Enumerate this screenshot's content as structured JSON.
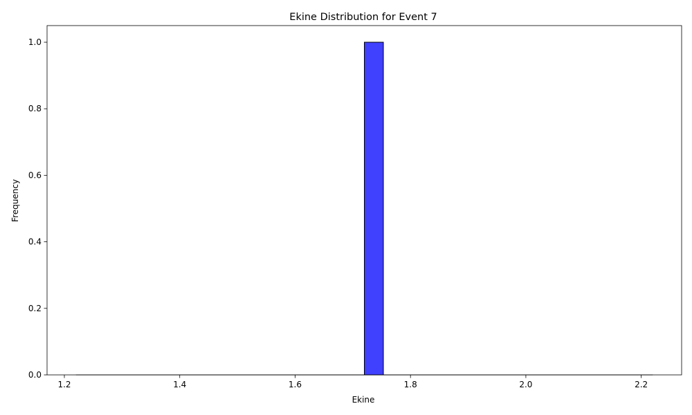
{
  "chart_data": {
    "type": "bar",
    "title": "Ekine Distribution for Event 7",
    "xlabel": "Ekine",
    "ylabel": "Frequency",
    "xlim": [
      1.17,
      2.27
    ],
    "ylim": [
      0,
      1.05
    ],
    "x_ticks": [
      "1.2",
      "1.4",
      "1.6",
      "1.8",
      "2.0",
      "2.2"
    ],
    "y_ticks": [
      "0.0",
      "0.2",
      "0.4",
      "0.6",
      "0.8",
      "1.0"
    ],
    "bins": [
      {
        "x0": 1.72,
        "x1": 1.753,
        "count": 1
      }
    ],
    "baseline_range": [
      1.22,
      2.22
    ],
    "bar_color": "#4040ff",
    "edge_color": "#000000",
    "grid": false,
    "legend": "none"
  }
}
